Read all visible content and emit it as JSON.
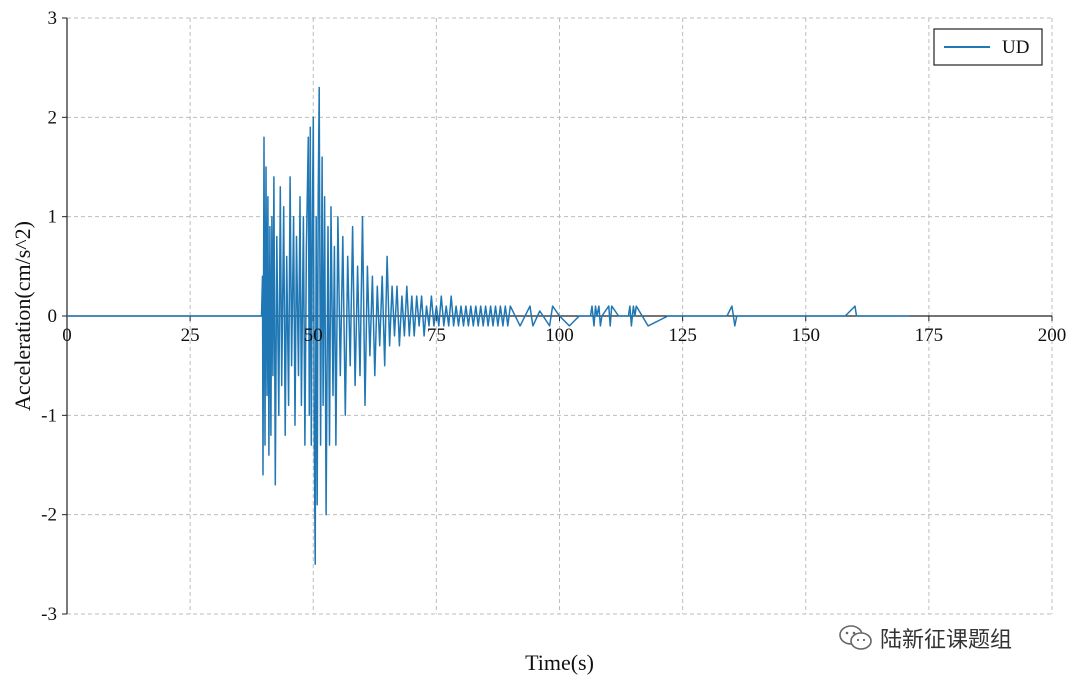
{
  "chart_data": {
    "type": "line",
    "xlabel": "Time(s)",
    "ylabel": "Acceleration(cm/s^2)",
    "xlim": [
      0,
      200
    ],
    "ylim": [
      -3,
      3
    ],
    "x_ticks": [
      0,
      25,
      50,
      75,
      100,
      125,
      150,
      175,
      200
    ],
    "y_ticks": [
      -3,
      -2,
      -1,
      0,
      1,
      2,
      3
    ],
    "grid": true,
    "legend_position": "top-right",
    "series": [
      {
        "name": "UD",
        "color": "#1f77b4",
        "x": [
          0,
          39.5,
          39.7,
          39.8,
          40.0,
          40.2,
          40.4,
          40.6,
          40.8,
          41.0,
          41.2,
          41.4,
          41.6,
          41.8,
          42.0,
          42.3,
          42.6,
          43.0,
          43.3,
          43.6,
          44.0,
          44.3,
          44.6,
          45.0,
          45.3,
          45.6,
          46.0,
          46.3,
          46.6,
          47.0,
          47.3,
          47.6,
          48.0,
          48.3,
          48.6,
          49.0,
          49.2,
          49.4,
          49.6,
          49.8,
          50.0,
          50.2,
          50.4,
          50.6,
          50.8,
          51.0,
          51.2,
          51.5,
          51.8,
          52.0,
          52.3,
          52.6,
          53.0,
          53.3,
          53.6,
          54.0,
          54.3,
          54.6,
          55.0,
          55.5,
          56.0,
          56.5,
          57.0,
          57.5,
          58.0,
          58.5,
          59.0,
          59.5,
          60.0,
          60.5,
          61.0,
          61.5,
          62.0,
          62.5,
          63.0,
          63.5,
          64.0,
          64.5,
          65.0,
          65.5,
          66.0,
          66.5,
          67.0,
          67.5,
          68.0,
          68.5,
          69.0,
          69.5,
          70.0,
          70.5,
          71.0,
          71.5,
          72.0,
          72.5,
          73.0,
          73.5,
          74.0,
          74.5,
          75.0,
          75.5,
          76.0,
          76.5,
          77.0,
          77.5,
          78.0,
          78.5,
          79.0,
          79.5,
          80.0,
          80.5,
          81.0,
          81.5,
          82.0,
          82.5,
          83.0,
          83.5,
          84.0,
          84.5,
          85.0,
          85.5,
          86.0,
          86.5,
          87.0,
          87.5,
          88.0,
          88.5,
          89.0,
          89.5,
          90.0,
          92.0,
          94.0,
          94.3,
          94.6,
          96.0,
          98.0,
          98.3,
          98.6,
          100.0,
          102.0,
          104.0,
          106.0,
          106.3,
          106.6,
          107.0,
          107.3,
          107.6,
          108.0,
          108.3,
          108.6,
          110.0,
          110.3,
          110.6,
          112.0,
          114.0,
          114.3,
          114.6,
          115.0,
          115.3,
          115.6,
          118.0,
          122.0,
          126.0,
          130.0,
          134.0,
          135.0,
          135.3,
          135.6,
          136.0,
          140.0,
          146.0,
          152.0,
          158.0,
          160.0,
          160.3,
          160.6,
          165.0,
          171.0
        ],
        "values": [
          0,
          0,
          0.4,
          -1.6,
          1.8,
          -1.3,
          1.5,
          -0.8,
          1.2,
          -1.4,
          0.9,
          -1.2,
          1.0,
          -0.6,
          1.4,
          -1.7,
          0.8,
          -1.0,
          1.3,
          -0.7,
          1.1,
          -1.2,
          0.6,
          -0.9,
          1.4,
          -0.5,
          1.0,
          -1.1,
          0.8,
          -0.6,
          1.2,
          -0.9,
          1.0,
          -1.3,
          0.7,
          1.8,
          -1.0,
          1.9,
          -1.3,
          0.9,
          2.0,
          -1.1,
          -2.5,
          1.0,
          -1.9,
          1.2,
          2.3,
          -1.3,
          1.6,
          -0.9,
          1.2,
          -2.0,
          0.9,
          -1.3,
          1.1,
          -0.8,
          0.7,
          -1.3,
          1.0,
          -0.6,
          0.8,
          -1.0,
          0.6,
          -0.5,
          0.9,
          -0.7,
          0.5,
          -0.6,
          1.0,
          -0.9,
          0.5,
          -0.4,
          0.4,
          -0.6,
          0.3,
          -0.3,
          0.4,
          -0.5,
          0.6,
          -0.3,
          0.3,
          -0.2,
          0.3,
          -0.3,
          0.2,
          -0.2,
          0.3,
          -0.2,
          0.2,
          -0.2,
          0.2,
          -0.1,
          0.2,
          -0.2,
          0.1,
          -0.1,
          0.2,
          -0.1,
          0.1,
          -0.1,
          0.2,
          -0.1,
          0.1,
          -0.1,
          0.2,
          -0.1,
          0.1,
          -0.1,
          0.1,
          -0.1,
          0.1,
          -0.1,
          0.1,
          -0.1,
          0.1,
          -0.1,
          0.1,
          -0.1,
          0.1,
          -0.1,
          0.1,
          -0.1,
          0.1,
          -0.1,
          0.1,
          -0.1,
          0.1,
          -0.1,
          0.1,
          -0.1,
          0.1,
          0,
          -0.1,
          0.05,
          -0.1,
          0,
          0.1,
          0,
          -0.1,
          0,
          0,
          0,
          0.1,
          -0.1,
          0.1,
          0,
          0.1,
          -0.1,
          0,
          0.1,
          -0.1,
          0.1,
          0,
          0,
          0.1,
          -0.1,
          0.1,
          0,
          0.1,
          -0.1,
          0,
          0,
          0,
          0,
          0.1,
          0,
          -0.1,
          0,
          0,
          0,
          0,
          0,
          0.1,
          0,
          0,
          0,
          0
        ]
      }
    ]
  },
  "watermark": {
    "icon": "wechat-icon",
    "text": "陆新征课题组"
  }
}
